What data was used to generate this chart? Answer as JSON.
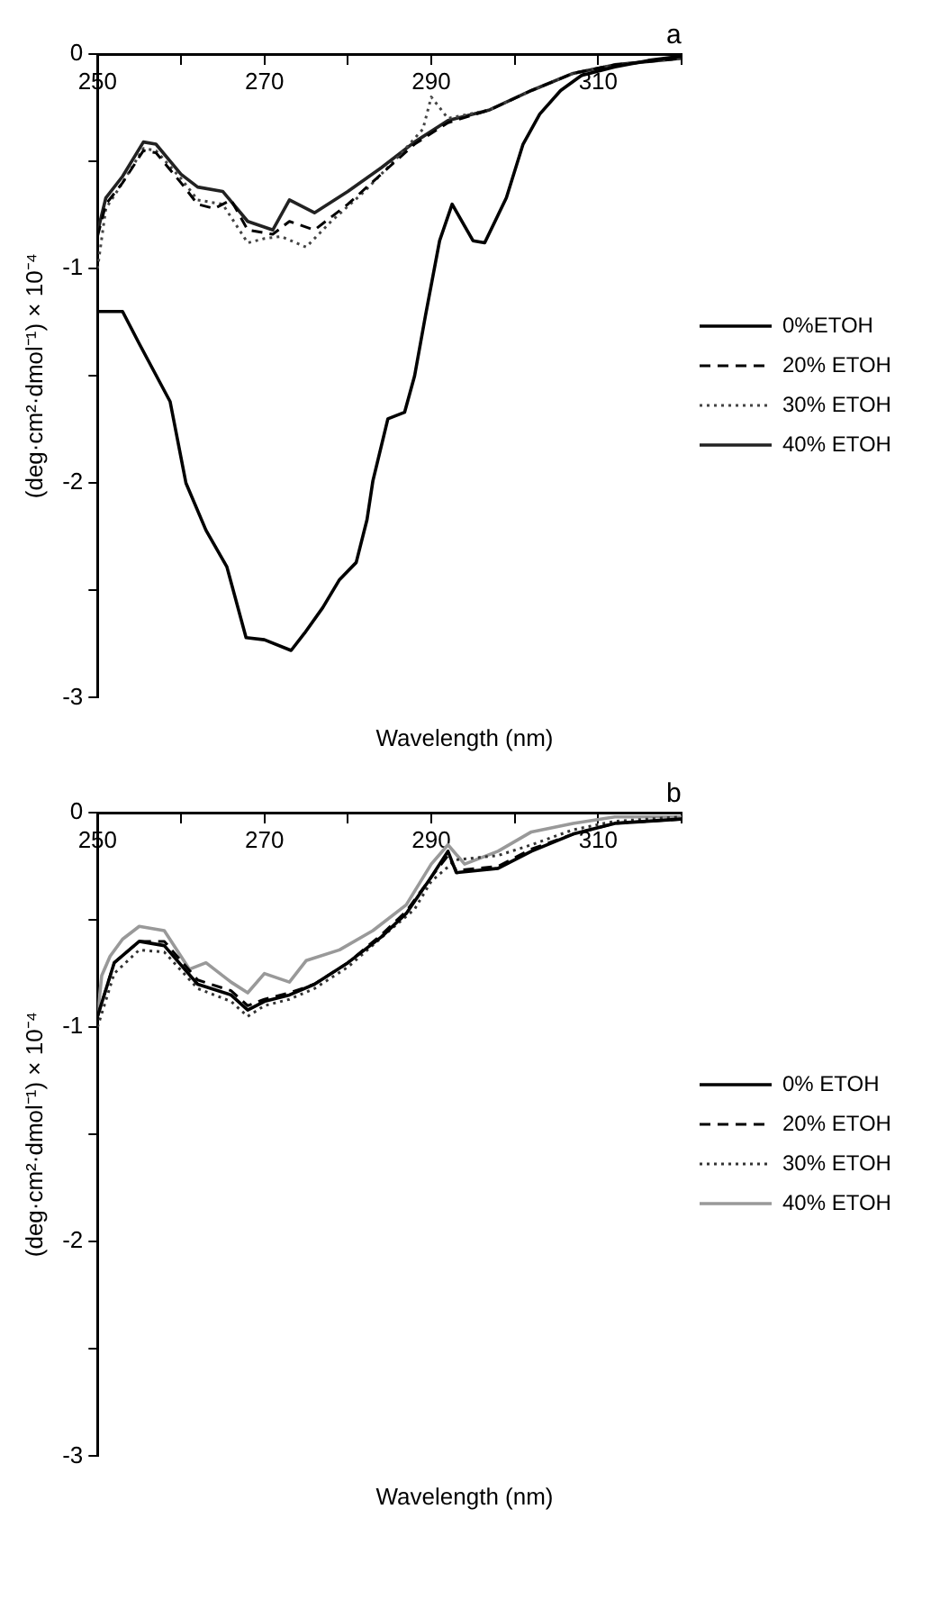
{
  "chart_data": [
    {
      "type": "line",
      "title": "a",
      "xlabel": "Wavelength (nm)",
      "ylabel": "(deg·cm²·dmol⁻¹) × 10⁻⁴",
      "xlim": [
        250,
        320
      ],
      "ylim": [
        -3,
        0
      ],
      "xticks": [
        250,
        270,
        290,
        310
      ],
      "yticks": [
        -3,
        -2,
        -1,
        0
      ],
      "grid": false,
      "legend": "right",
      "marker": "none",
      "series": [
        {
          "name": "0%ETOH",
          "color": "#000000",
          "line_style": "solid",
          "x": [
            250,
            253,
            255,
            258.7,
            260.6,
            263,
            265.5,
            267.8,
            270,
            273.2,
            274.8,
            277,
            279,
            281,
            282.3,
            283,
            284.8,
            286.8,
            288,
            289.3,
            291,
            292.5,
            295,
            296.4,
            299,
            301,
            303,
            305.5,
            308,
            312,
            316,
            320
          ],
          "values": [
            -1.2,
            -1.2,
            -1.35,
            -1.62,
            -2.0,
            -2.22,
            -2.39,
            -2.72,
            -2.73,
            -2.78,
            -2.7,
            -2.58,
            -2.45,
            -2.37,
            -2.17,
            -1.99,
            -1.7,
            -1.67,
            -1.5,
            -1.22,
            -0.87,
            -0.7,
            -0.87,
            -0.88,
            -0.67,
            -0.42,
            -0.28,
            -0.17,
            -0.1,
            -0.06,
            -0.03,
            -0.01
          ]
        },
        {
          "name": "20% ETOH",
          "color": "#000000",
          "line_style": "dashed",
          "x": [
            250,
            251,
            253,
            255.5,
            257,
            260,
            262,
            264,
            266,
            268,
            271,
            273,
            276,
            280,
            284,
            288,
            292,
            297,
            302,
            307,
            312,
            320
          ],
          "values": [
            -0.85,
            -0.7,
            -0.6,
            -0.45,
            -0.46,
            -0.6,
            -0.7,
            -0.72,
            -0.68,
            -0.82,
            -0.84,
            -0.78,
            -0.82,
            -0.7,
            -0.56,
            -0.42,
            -0.32,
            -0.26,
            -0.17,
            -0.09,
            -0.05,
            -0.02
          ]
        },
        {
          "name": "30% ETOH",
          "color": "#444444",
          "line_style": "dotted",
          "x": [
            250,
            251,
            253,
            255.5,
            257,
            260,
            262,
            265,
            268,
            270,
            272,
            275,
            278,
            282,
            286,
            289,
            290,
            292,
            297,
            302,
            307,
            312,
            320
          ],
          "values": [
            -1.0,
            -0.72,
            -0.6,
            -0.44,
            -0.45,
            -0.58,
            -0.68,
            -0.7,
            -0.88,
            -0.86,
            -0.85,
            -0.9,
            -0.78,
            -0.64,
            -0.48,
            -0.35,
            -0.2,
            -0.3,
            -0.26,
            -0.17,
            -0.09,
            -0.05,
            -0.02
          ]
        },
        {
          "name": "40% ETOH",
          "color": "#222222",
          "line_style": "solid",
          "x": [
            250,
            251,
            253,
            255.5,
            257,
            260,
            262,
            265,
            268,
            271,
            273,
            276,
            280,
            284,
            288,
            292,
            297,
            302,
            307,
            312,
            320
          ],
          "values": [
            -0.83,
            -0.67,
            -0.57,
            -0.41,
            -0.42,
            -0.56,
            -0.62,
            -0.64,
            -0.78,
            -0.82,
            -0.68,
            -0.74,
            -0.64,
            -0.53,
            -0.41,
            -0.31,
            -0.26,
            -0.17,
            -0.09,
            -0.05,
            -0.02
          ]
        }
      ]
    },
    {
      "type": "line",
      "title": "b",
      "xlabel": "Wavelength (nm)",
      "ylabel": "(deg·cm²·dmol⁻¹) × 10⁻⁴",
      "xlim": [
        250,
        320
      ],
      "ylim": [
        -3,
        0
      ],
      "xticks": [
        250,
        270,
        290,
        310
      ],
      "yticks": [
        -3,
        -2,
        -1,
        0
      ],
      "grid": false,
      "legend": "right",
      "marker": "none",
      "series": [
        {
          "name": "0% ETOH",
          "color": "#000000",
          "line_style": "solid",
          "x": [
            250,
            252,
            255,
            258,
            262,
            266,
            268,
            270,
            273,
            276,
            280,
            284,
            287,
            290,
            292,
            293,
            298,
            302,
            307,
            312,
            320
          ],
          "values": [
            -0.95,
            -0.7,
            -0.6,
            -0.62,
            -0.8,
            -0.85,
            -0.92,
            -0.88,
            -0.85,
            -0.8,
            -0.7,
            -0.58,
            -0.47,
            -0.3,
            -0.18,
            -0.28,
            -0.26,
            -0.18,
            -0.1,
            -0.05,
            -0.03
          ]
        },
        {
          "name": "20% ETOH",
          "color": "#000000",
          "line_style": "dashed",
          "x": [
            250,
            252,
            255,
            258,
            262,
            266,
            268,
            270,
            273,
            276,
            280,
            284,
            287,
            290,
            292,
            293,
            298,
            302,
            307,
            312,
            320
          ],
          "values": [
            -0.95,
            -0.7,
            -0.6,
            -0.6,
            -0.78,
            -0.83,
            -0.9,
            -0.87,
            -0.84,
            -0.8,
            -0.7,
            -0.57,
            -0.46,
            -0.3,
            -0.2,
            -0.27,
            -0.25,
            -0.17,
            -0.1,
            -0.05,
            -0.03
          ]
        },
        {
          "name": "30% ETOH",
          "color": "#333333",
          "line_style": "dotted",
          "x": [
            250,
            252,
            255,
            258,
            262,
            266,
            268,
            270,
            273,
            276,
            280,
            285,
            288,
            290,
            293,
            298,
            302,
            307,
            312,
            320
          ],
          "values": [
            -1.0,
            -0.75,
            -0.64,
            -0.65,
            -0.82,
            -0.88,
            -0.95,
            -0.9,
            -0.87,
            -0.82,
            -0.72,
            -0.55,
            -0.45,
            -0.32,
            -0.22,
            -0.2,
            -0.15,
            -0.08,
            -0.04,
            -0.02
          ]
        },
        {
          "name": "40% ETOH",
          "color": "#999999",
          "line_style": "solid",
          "x": [
            250,
            250.5,
            251.5,
            253,
            255,
            258,
            261,
            263,
            266,
            268,
            270,
            273,
            275,
            279,
            283,
            287,
            290,
            292,
            294,
            298,
            302,
            307,
            312,
            320
          ],
          "values": [
            -0.95,
            -0.76,
            -0.67,
            -0.59,
            -0.53,
            -0.55,
            -0.73,
            -0.7,
            -0.79,
            -0.84,
            -0.75,
            -0.79,
            -0.69,
            -0.64,
            -0.55,
            -0.43,
            -0.24,
            -0.15,
            -0.24,
            -0.18,
            -0.09,
            -0.05,
            -0.02,
            -0.02
          ]
        }
      ]
    }
  ]
}
